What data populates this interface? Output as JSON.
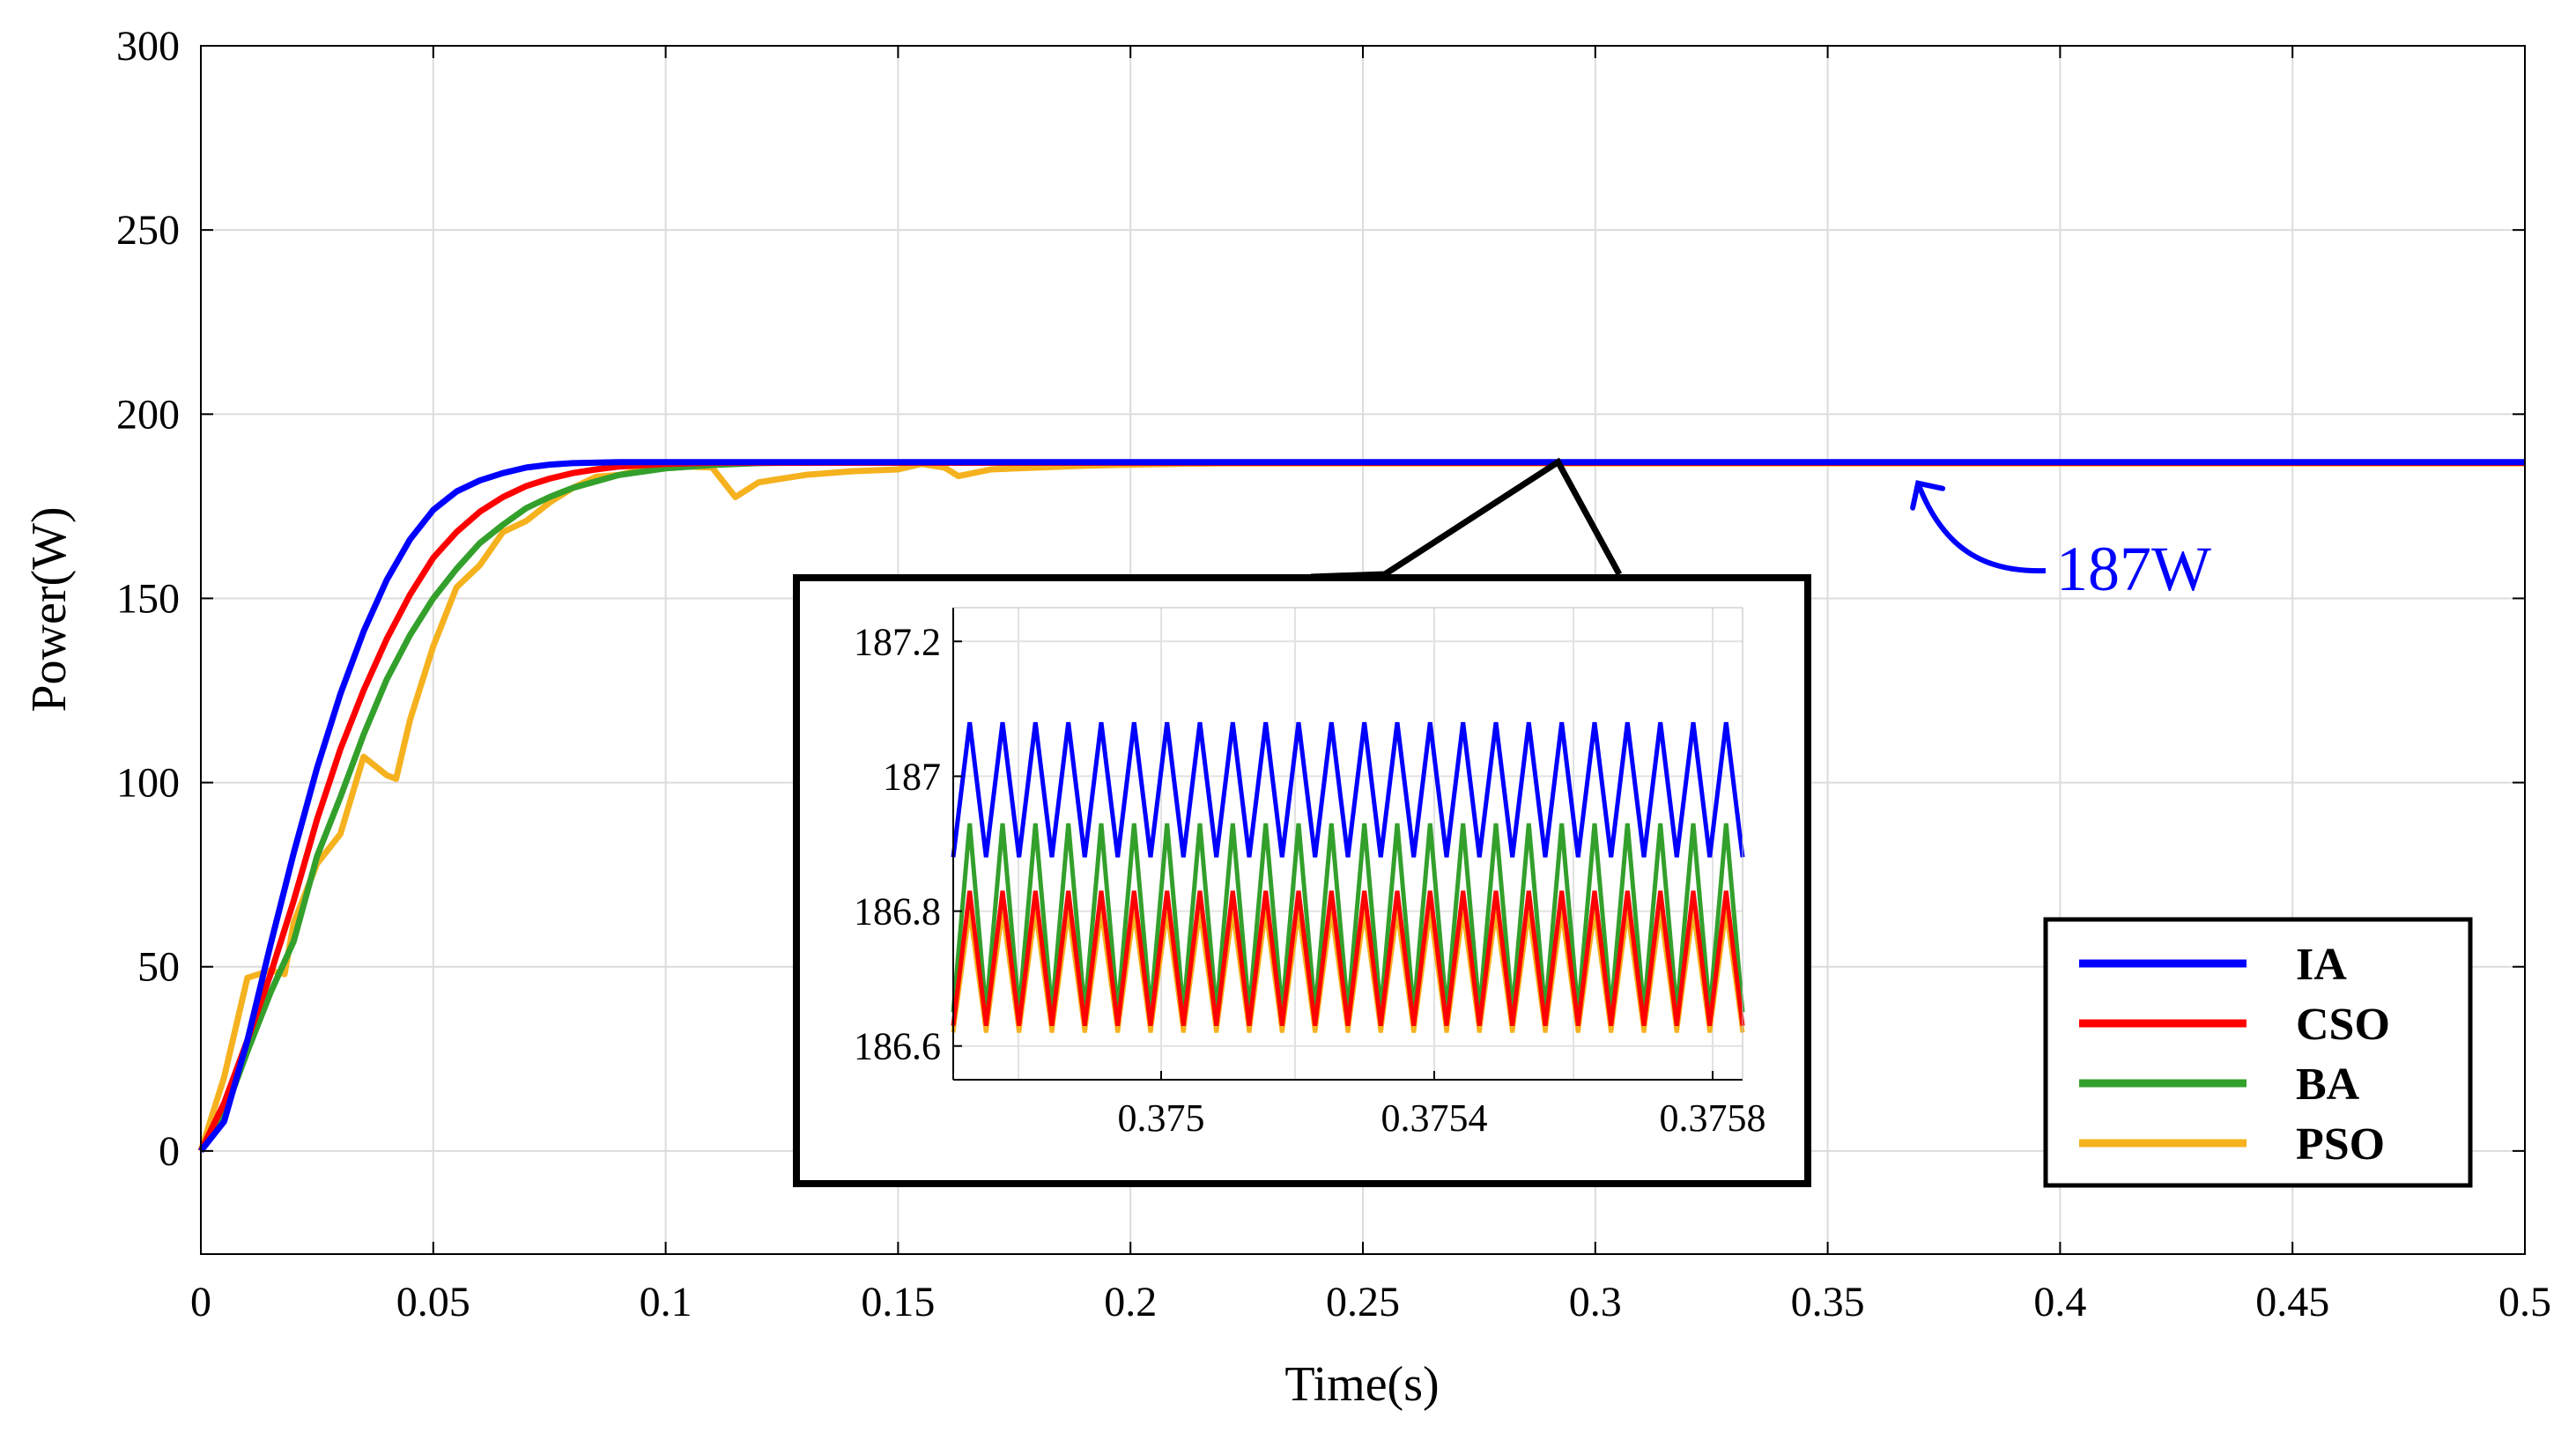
{
  "chart_data": {
    "type": "line",
    "xlabel": "Time(s)",
    "ylabel": "Power(W)",
    "xlim": [
      0,
      0.5
    ],
    "ylim": [
      -28,
      300
    ],
    "x_ticks": [
      0,
      0.05,
      0.1,
      0.15,
      0.2,
      0.25,
      0.3,
      0.35,
      0.4,
      0.45,
      0.5
    ],
    "x_tick_labels": [
      "0",
      "0.05",
      "0.1",
      "0.15",
      "0.2",
      "0.25",
      "0.3",
      "0.35",
      "0.4",
      "0.45",
      "0.5"
    ],
    "y_ticks": [
      0,
      50,
      100,
      150,
      200,
      250,
      300
    ],
    "y_tick_labels": [
      "0",
      "50",
      "100",
      "150",
      "200",
      "250",
      "300"
    ],
    "grid": true,
    "legend_position": "bottom-right",
    "series": [
      {
        "name": "IA",
        "color": "#0000ff",
        "x": [
          0,
          0.005,
          0.01,
          0.015,
          0.02,
          0.025,
          0.03,
          0.035,
          0.04,
          0.045,
          0.05,
          0.055,
          0.06,
          0.065,
          0.07,
          0.075,
          0.08,
          0.09,
          0.1,
          0.11,
          0.5
        ],
        "y": [
          0,
          8,
          30,
          56,
          81,
          104,
          124,
          141,
          155,
          166,
          174,
          179,
          182,
          184,
          185.5,
          186.3,
          186.7,
          187,
          187,
          187,
          187
        ]
      },
      {
        "name": "CSO",
        "color": "#ff0000",
        "x": [
          0,
          0.005,
          0.01,
          0.015,
          0.02,
          0.025,
          0.03,
          0.035,
          0.04,
          0.045,
          0.05,
          0.055,
          0.06,
          0.065,
          0.07,
          0.075,
          0.08,
          0.085,
          0.09,
          0.1,
          0.11,
          0.12,
          0.5
        ],
        "y": [
          0,
          13,
          30,
          48,
          68,
          90,
          109,
          125,
          139,
          151,
          161,
          168,
          173.5,
          177.5,
          180.5,
          182.5,
          184,
          185,
          185.8,
          186.5,
          186.8,
          186.8,
          186.8
        ]
      },
      {
        "name": "BA",
        "color": "#33a02c",
        "x": [
          0,
          0.005,
          0.01,
          0.015,
          0.02,
          0.025,
          0.03,
          0.035,
          0.04,
          0.045,
          0.05,
          0.055,
          0.06,
          0.065,
          0.07,
          0.075,
          0.08,
          0.09,
          0.1,
          0.11,
          0.12,
          0.13,
          0.5
        ],
        "y": [
          0,
          10,
          27,
          43,
          57,
          80,
          96,
          113,
          128,
          140,
          150,
          158,
          165,
          170,
          174.5,
          177.5,
          180,
          183.5,
          185.3,
          186.2,
          186.7,
          186.9,
          186.9
        ]
      },
      {
        "name": "PSO",
        "color": "#f5b21e",
        "x": [
          0,
          0.005,
          0.01,
          0.015,
          0.018,
          0.02,
          0.025,
          0.03,
          0.035,
          0.04,
          0.042,
          0.045,
          0.05,
          0.055,
          0.06,
          0.065,
          0.07,
          0.075,
          0.08,
          0.085,
          0.09,
          0.095,
          0.1,
          0.105,
          0.11,
          0.115,
          0.12,
          0.13,
          0.14,
          0.15,
          0.155,
          0.16,
          0.163,
          0.17,
          0.18,
          0.19,
          0.2,
          0.21,
          0.22,
          0.23,
          0.5
        ],
        "y": [
          0,
          20,
          47,
          49,
          48,
          62,
          78,
          86,
          107,
          102,
          101,
          117,
          137,
          153,
          159,
          168,
          171,
          176,
          180,
          183,
          183.5,
          185,
          185.5,
          185.8,
          185.5,
          177.5,
          181.5,
          183.5,
          184.5,
          185,
          186.5,
          185.5,
          183.2,
          185,
          185.5,
          186,
          186.3,
          186.5,
          186.6,
          186.6,
          186.6
        ]
      }
    ],
    "annotations": [
      {
        "text": "187W",
        "color": "#0000ff",
        "x": 0.37,
        "y": 187
      }
    ],
    "inset": {
      "type": "line",
      "x_tick_labels": [
        "0.375",
        "0.3754",
        "0.3758"
      ],
      "y_tick_labels": [
        "187.2",
        "187",
        "186.8",
        "186.6"
      ],
      "ylim": [
        186.55,
        187.25
      ],
      "oscillation_cycles": 24,
      "bands": [
        {
          "series": "PSO",
          "color": "#f5b21e",
          "min": 186.62,
          "max": 186.8
        },
        {
          "series": "BA",
          "color": "#33a02c",
          "min": 186.65,
          "max": 186.93
        },
        {
          "series": "CSO",
          "color": "#ff0000",
          "min": 186.63,
          "max": 186.83
        },
        {
          "series": "IA",
          "color": "#0000ff",
          "min": 186.88,
          "max": 187.08
        }
      ]
    }
  }
}
